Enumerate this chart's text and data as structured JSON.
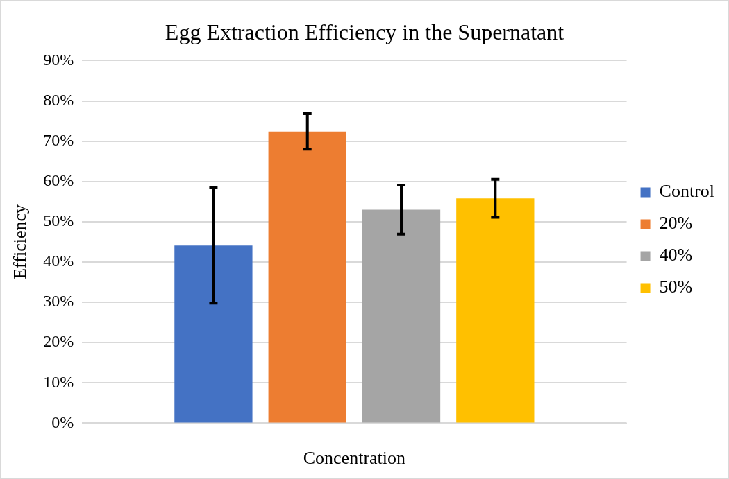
{
  "chart_data": {
    "type": "bar",
    "title": "Egg Extraction Efficiency in the Supernatant",
    "xlabel": "Concentration",
    "ylabel": "Efficiency",
    "categories": [
      null
    ],
    "series": [
      {
        "name": "Control",
        "color": "#4472c4",
        "values": [
          44.1
        ],
        "errors": [
          14.3
        ]
      },
      {
        "name": "20%",
        "color": "#ed7d31",
        "values": [
          72.4
        ],
        "errors": [
          4.4
        ]
      },
      {
        "name": "40%",
        "color": "#a5a5a5",
        "values": [
          53.0
        ],
        "errors": [
          6.1
        ]
      },
      {
        "name": "50%",
        "color": "#ffc000",
        "values": [
          55.8
        ],
        "errors": [
          4.7
        ]
      }
    ],
    "ylim": [
      0,
      90
    ],
    "yticks": [
      {
        "value": 0,
        "label": "0%"
      },
      {
        "value": 10,
        "label": "10%"
      },
      {
        "value": 20,
        "label": "20%"
      },
      {
        "value": 30,
        "label": "30%"
      },
      {
        "value": 40,
        "label": "40%"
      },
      {
        "value": 50,
        "label": "50%"
      },
      {
        "value": 60,
        "label": "60%"
      },
      {
        "value": 70,
        "label": "70%"
      },
      {
        "value": 80,
        "label": "80%"
      },
      {
        "value": 90,
        "label": "90%"
      }
    ],
    "grid": "y",
    "legend": "right"
  }
}
